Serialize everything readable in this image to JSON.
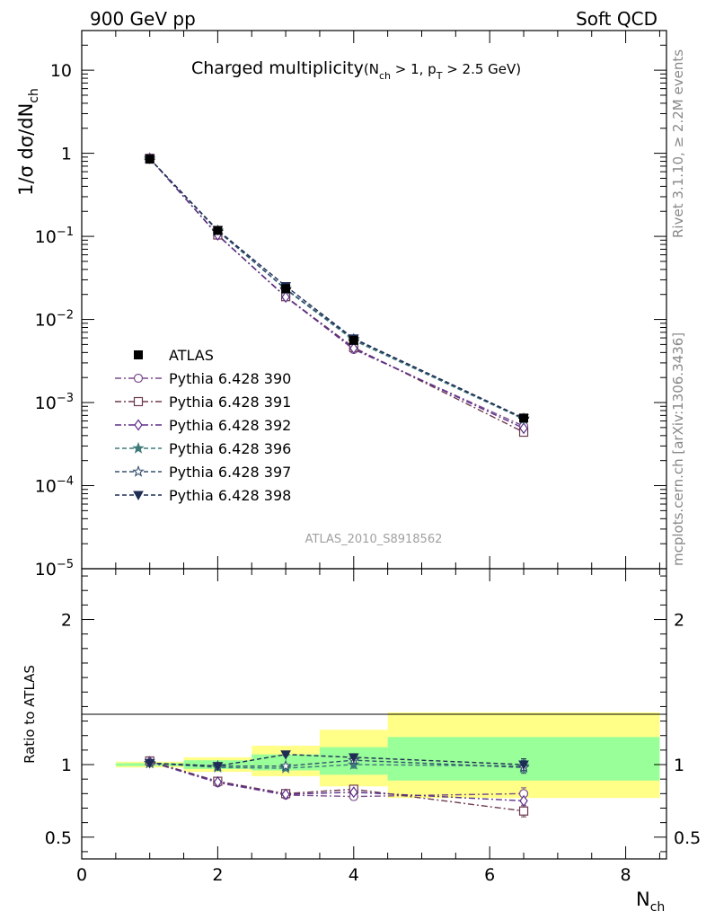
{
  "header": {
    "left": "900 GeV pp",
    "right": "Soft QCD"
  },
  "side_text": {
    "upper": "Rivet 3.1.10, ≥ 2.2M events",
    "lower": "mcplots.cern.ch [arXiv:1306.3436]"
  },
  "watermark": "ATLAS_2010_S8918562",
  "colors": {
    "band_outer": "#ffff88",
    "band_inner": "#99ff99",
    "p390": "#7a4c8c",
    "p391": "#6e3a4e",
    "p392": "#5c2f8a",
    "p396": "#3e7a7a",
    "p397": "#33506e",
    "p398": "#1f2d55"
  },
  "chart_data": [
    {
      "type": "line",
      "title": "Charged multiplicity",
      "title_sub": {
        "open": "(N",
        "nch": "ch",
        "mid": " > 1, p",
        "pt": "T",
        "close": " > 2.5 GeV)"
      },
      "ylabel": {
        "main": "1/σ dσ/dN",
        "sub": "ch"
      },
      "yscale": "log",
      "ylim": [
        1e-05,
        30
      ],
      "xlim": [
        0,
        8.6
      ],
      "yticks": [
        {
          "value": 10,
          "label": "10"
        },
        {
          "value": 1,
          "label": "1"
        },
        {
          "value": 0.1,
          "base": "10",
          "exp": "−1"
        },
        {
          "value": 0.01,
          "base": "10",
          "exp": "−2"
        },
        {
          "value": 0.001,
          "base": "10",
          "exp": "−3"
        },
        {
          "value": 0.0001,
          "base": "10",
          "exp": "−4"
        },
        {
          "value": 1e-05,
          "base": "10",
          "exp": "−5"
        }
      ],
      "x": [
        1,
        2,
        3,
        4,
        6.5
      ],
      "data": {
        "name": "ATLAS",
        "values": [
          0.85,
          0.118,
          0.0235,
          0.0056,
          0.00065
        ]
      },
      "series": [
        {
          "name": "Pythia 6.428 390",
          "marker": "circle-open",
          "line": "dashdot",
          "values": [
            0.87,
            0.103,
            0.0188,
            0.00435,
            0.00052
          ]
        },
        {
          "name": "Pythia 6.428 391",
          "marker": "square-open",
          "line": "dashdot",
          "values": [
            0.87,
            0.104,
            0.0188,
            0.0046,
            0.00044
          ]
        },
        {
          "name": "Pythia 6.428 392",
          "marker": "diamond-open",
          "line": "dashdot",
          "values": [
            0.87,
            0.104,
            0.0186,
            0.0045,
            0.00049
          ]
        },
        {
          "name": "Pythia 6.428 396",
          "marker": "star-filled",
          "line": "dashed",
          "values": [
            0.86,
            0.116,
            0.023,
            0.0056,
            0.00063
          ]
        },
        {
          "name": "Pythia 6.428 397",
          "marker": "star-open",
          "line": "dashed",
          "values": [
            0.86,
            0.117,
            0.0233,
            0.0058,
            0.00064
          ]
        },
        {
          "name": "Pythia 6.428 398",
          "marker": "triangle-down-filled",
          "line": "dashed",
          "values": [
            0.86,
            0.119,
            0.0252,
            0.0059,
            0.00065
          ]
        }
      ]
    },
    {
      "type": "line",
      "ylabel": "Ratio to ATLAS",
      "xlabel": {
        "main": "N",
        "sub": "ch"
      },
      "xlim": [
        0,
        8.6
      ],
      "ylim": [
        0.35,
        2.35
      ],
      "xticks": [
        0,
        2,
        4,
        6,
        8
      ],
      "yticks": [
        0.5,
        1,
        2
      ],
      "bands": [
        {
          "x": [
            0.5,
            1.5
          ],
          "outer": [
            0.98,
            1.02
          ],
          "inner": [
            0.99,
            1.01
          ]
        },
        {
          "x": [
            1.5,
            2.5
          ],
          "outer": [
            0.95,
            1.05
          ],
          "inner": [
            0.97,
            1.03
          ]
        },
        {
          "x": [
            2.5,
            3.5
          ],
          "outer": [
            0.92,
            1.13
          ],
          "inner": [
            0.96,
            1.07
          ]
        },
        {
          "x": [
            3.5,
            4.5
          ],
          "outer": [
            0.85,
            1.24
          ],
          "inner": [
            0.93,
            1.12
          ]
        },
        {
          "x": [
            4.5,
            8.5
          ],
          "outer": [
            0.77,
            1.36
          ],
          "inner": [
            0.89,
            1.19
          ]
        }
      ],
      "x": [
        1,
        2,
        3,
        4,
        6.5
      ],
      "series": [
        {
          "name": "Pythia 6.428 390",
          "values": [
            1.02,
            0.875,
            0.79,
            0.78,
            0.8
          ],
          "errors": [
            0.005,
            0.01,
            0.01,
            0.025,
            0.04
          ]
        },
        {
          "name": "Pythia 6.428 391",
          "values": [
            1.025,
            0.885,
            0.8,
            0.83,
            0.68
          ],
          "errors": [
            0.005,
            0.01,
            0.01,
            0.025,
            0.04
          ]
        },
        {
          "name": "Pythia 6.428 392",
          "values": [
            1.02,
            0.88,
            0.795,
            0.81,
            0.75
          ],
          "errors": [
            0.005,
            0.01,
            0.01,
            0.025,
            0.04
          ]
        },
        {
          "name": "Pythia 6.428 396",
          "values": [
            1.01,
            0.98,
            0.975,
            1.0,
            0.99
          ],
          "errors": [
            0.005,
            0.01,
            0.01,
            0.025,
            0.04
          ]
        },
        {
          "name": "Pythia 6.428 397",
          "values": [
            1.01,
            0.99,
            0.99,
            1.03,
            0.98
          ],
          "errors": [
            0.005,
            0.01,
            0.01,
            0.025,
            0.04
          ]
        },
        {
          "name": "Pythia 6.428 398",
          "values": [
            1.01,
            0.99,
            1.07,
            1.05,
            1.0
          ],
          "errors": [
            0.005,
            0.01,
            0.01,
            0.025,
            0.04
          ]
        }
      ]
    }
  ]
}
